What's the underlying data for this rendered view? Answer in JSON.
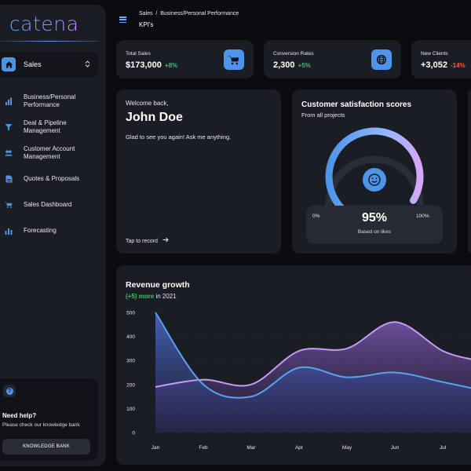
{
  "app": {
    "logo": "catena"
  },
  "sidebar": {
    "selected": "Sales",
    "items": [
      {
        "label": "Business/Personal Performance",
        "icon": "bar-chart-icon"
      },
      {
        "label": "Deal & Pipeline Management",
        "icon": "funnel-icon"
      },
      {
        "label": "Customer Account Management",
        "icon": "users-icon"
      },
      {
        "label": "Quotes & Proposals",
        "icon": "document-icon"
      },
      {
        "label": "Sales Dashboard",
        "icon": "cart-icon"
      },
      {
        "label": "Forecasting",
        "icon": "bar-chart-icon"
      }
    ],
    "help": {
      "title": "Need help?",
      "text": "Please check our knowledge bank",
      "button": "KNOWLEDGE BANK"
    }
  },
  "header": {
    "breadcrumb": "Sales  /  Business/Personal Performance",
    "title": "KPI's"
  },
  "stats": [
    {
      "label": "Total Sales",
      "value": "$173,000",
      "change": "+8%",
      "change_color": "#3fbf6f",
      "icon": "cart-icon"
    },
    {
      "label": "Conversion Rates",
      "value": "2,300",
      "change": "+5%",
      "change_color": "#3fbf6f",
      "icon": "globe-icon"
    },
    {
      "label": "New Clients",
      "value": "+3,052",
      "change": "-14%",
      "change_color": "#ff5a3c",
      "icon": ""
    }
  ],
  "welcome": {
    "greeting": "Welcome back,",
    "name": "John Doe",
    "message": "Glad to see you again! Ask me anything.",
    "record": "Tap to record"
  },
  "satisfaction": {
    "title": "Customer satisfaction scores",
    "subtitle": "From all projects",
    "percent": "95%",
    "percent_label": "Based on likes",
    "min_label": "0%",
    "max_label": "100%",
    "value": 0.95
  },
  "revenue": {
    "title": "Revenue growth",
    "highlight": "(+5) more",
    "suffix": " in 2021"
  },
  "colors": {
    "accent": "#4d95e8",
    "positive": "#3fbf6f",
    "negative": "#ff5a3c",
    "card": "#1b1d24"
  },
  "chart_data": {
    "type": "area",
    "categories": [
      "Jan",
      "Feb",
      "Mar",
      "Apr",
      "May",
      "Jun",
      "Jul"
    ],
    "y_ticks": [
      0,
      100,
      200,
      300,
      400,
      500
    ],
    "ylim": [
      0,
      500
    ],
    "series": [
      {
        "color": "#5aa2f0",
        "values": [
          500,
          200,
          150,
          270,
          230,
          250,
          210
        ]
      },
      {
        "color": "#c79bf5",
        "values": [
          190,
          220,
          200,
          340,
          350,
          460,
          340
        ]
      }
    ]
  }
}
